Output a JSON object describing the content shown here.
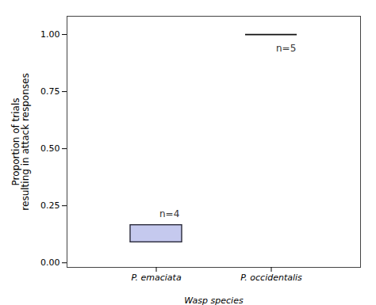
{
  "chart_data": {
    "type": "box",
    "xlabel": "Wasp species",
    "ylabel": "Proportion of trials\nresulting in attack responses",
    "categories": [
      "P. emaciata",
      "P. occidentalis"
    ],
    "q1": [
      0.09,
      1.0
    ],
    "q3": [
      0.165,
      1.0
    ],
    "colors": [
      "#c5c9ee",
      "#111111"
    ],
    "n_labels": [
      "n=4",
      "n=5"
    ],
    "ylim": [
      -0.02,
      1.08
    ],
    "yticks": [
      {
        "value": 0,
        "label": "0.00"
      },
      {
        "value": 0.25,
        "label": "0.25"
      },
      {
        "value": 0.5,
        "label": "0.50"
      },
      {
        "value": 0.75,
        "label": "0.75"
      },
      {
        "value": 1.0,
        "label": "1.00"
      }
    ]
  }
}
